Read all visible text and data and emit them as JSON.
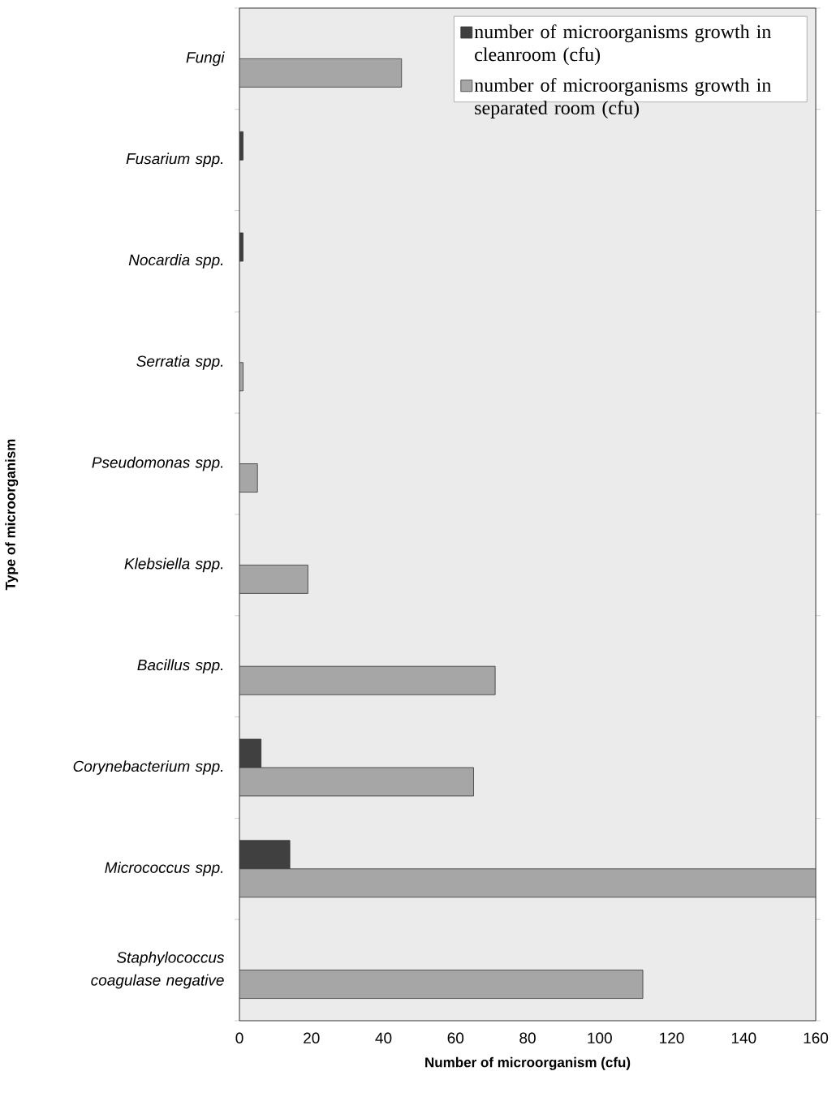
{
  "chart_data": {
    "type": "bar",
    "orientation": "horizontal",
    "xlabel": "Number of microorganism (cfu)",
    "ylabel": "Type of microorganism",
    "categories": [
      "Fungi",
      "Fusarium spp.",
      "Nocardia spp.",
      "Serratia spp.",
      "Pseudomonas spp.",
      "Klebsiella spp.",
      "Bacillus spp.",
      "Corynebacterium spp.",
      "Micrococcus spp.",
      "Staphylococcus coagulase negative"
    ],
    "series": [
      {
        "name": "number of microorganisms growth in cleanroom (cfu)",
        "color": "#404040",
        "values": [
          null,
          1,
          1,
          null,
          null,
          null,
          null,
          6,
          14,
          null
        ]
      },
      {
        "name": "number of microorganisms growth in separated room (cfu)",
        "color": "#a6a6a6",
        "values": [
          45,
          null,
          null,
          1,
          5,
          19,
          71,
          65,
          160,
          112
        ]
      }
    ],
    "xlim": [
      0,
      160
    ],
    "xticks": [
      0,
      20,
      40,
      60,
      80,
      100,
      120,
      140,
      160
    ],
    "legend": "top right"
  }
}
